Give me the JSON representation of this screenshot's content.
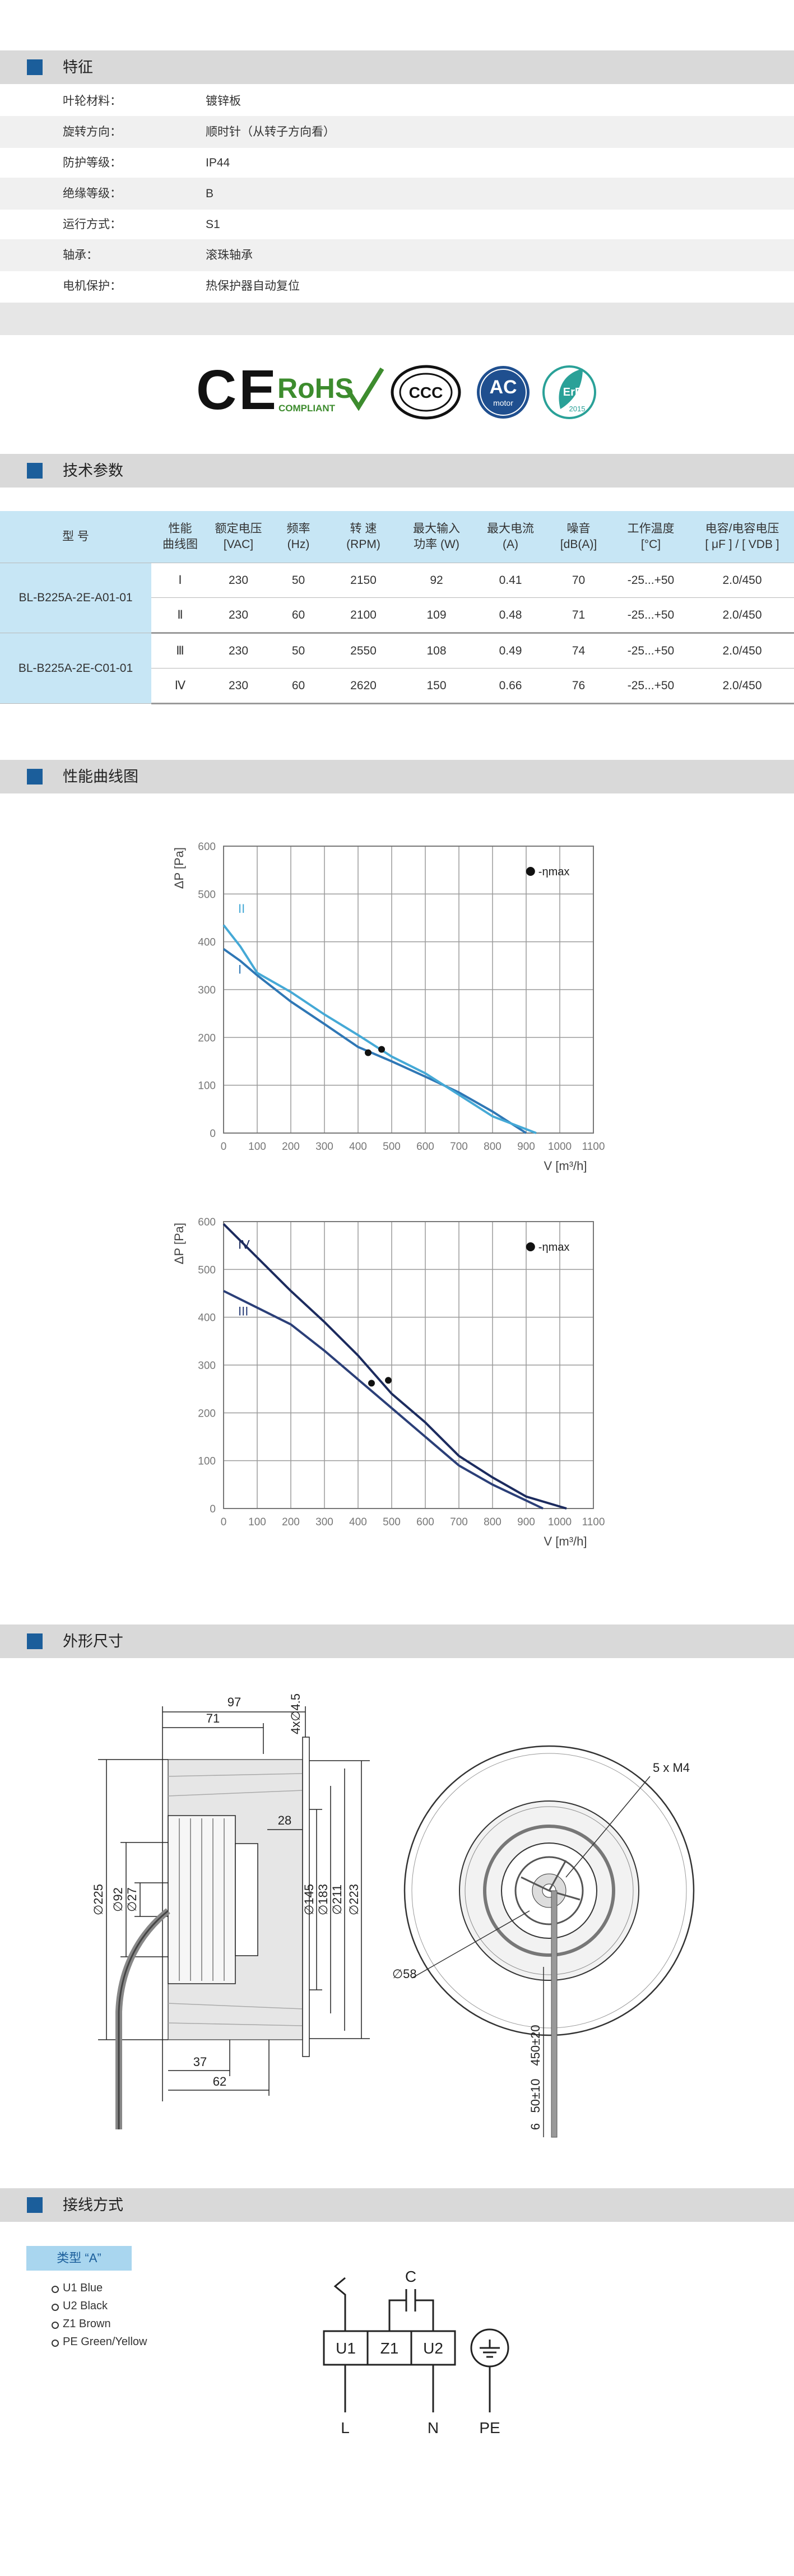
{
  "sections": {
    "features": "特征",
    "tech": "技术参数",
    "curves": "性能曲线图",
    "dimensions": "外形尺寸",
    "wiring": "接线方式"
  },
  "features": [
    [
      "叶轮材料：",
      "镀锌板"
    ],
    [
      "旋转方向：",
      "顺时针（从转子方向看）"
    ],
    [
      "防护等级：",
      "IP44"
    ],
    [
      "绝缘等级：",
      "B"
    ],
    [
      "运行方式：",
      "S1"
    ],
    [
      "轴承：",
      "滚珠轴承"
    ],
    [
      "电机保护：",
      "热保护器自动复位"
    ]
  ],
  "certifications": {
    "ce": "CE",
    "rohs": "RoHS",
    "rohs_sub": "COMPLIANT",
    "ccc": "CCC",
    "ac": "AC",
    "ac_sub": "motor",
    "erp": "ErP",
    "erp_year": "2015"
  },
  "tech_table": {
    "headers": [
      [
        "型 号"
      ],
      [
        "性能",
        "曲线图"
      ],
      [
        "额定电压",
        "[VAC]"
      ],
      [
        "频率",
        "(Hz)"
      ],
      [
        "转 速",
        "(RPM)"
      ],
      [
        "最大输入",
        "功率 (W)"
      ],
      [
        "最大电流",
        "(A)"
      ],
      [
        "噪音",
        "[dB(A)]"
      ],
      [
        "工作温度",
        "[°C]"
      ],
      [
        "电容/电容电压",
        "[ μF ] / [ VDB ]"
      ]
    ],
    "models": [
      "BL-B225A-2E-A01-01",
      "BL-B225A-2E-C01-01"
    ],
    "rows": [
      [
        "Ⅰ",
        "230",
        "50",
        "2150",
        "92",
        "0.41",
        "70",
        "-25...+50",
        "2.0/450"
      ],
      [
        "Ⅱ",
        "230",
        "60",
        "2100",
        "109",
        "0.48",
        "71",
        "-25...+50",
        "2.0/450"
      ],
      [
        "Ⅲ",
        "230",
        "50",
        "2550",
        "108",
        "0.49",
        "74",
        "-25...+50",
        "2.0/450"
      ],
      [
        "Ⅳ",
        "230",
        "60",
        "2620",
        "150",
        "0.66",
        "76",
        "-25...+50",
        "2.0/450"
      ]
    ]
  },
  "chart_data": [
    {
      "type": "line",
      "y_label": "ΔP [Pa]",
      "x_label": "V [m³/h]",
      "xlim": [
        0,
        1100
      ],
      "ylim": [
        0,
        600
      ],
      "xticks": [
        0,
        100,
        200,
        300,
        400,
        500,
        600,
        700,
        800,
        900,
        1000,
        1100
      ],
      "yticks": [
        0,
        100,
        200,
        300,
        400,
        500,
        600
      ],
      "grid": true,
      "series": [
        {
          "name": "I",
          "color": "#2f77b5",
          "x": [
            0,
            50,
            100,
            200,
            300,
            400,
            500,
            600,
            700,
            800,
            900
          ],
          "values": [
            385,
            360,
            330,
            275,
            228,
            180,
            150,
            118,
            85,
            45,
            0
          ]
        },
        {
          "name": "II",
          "color": "#45a9d6",
          "x": [
            0,
            50,
            100,
            200,
            300,
            400,
            500,
            600,
            700,
            800,
            930
          ],
          "values": [
            435,
            390,
            335,
            295,
            248,
            205,
            160,
            125,
            80,
            35,
            0
          ]
        },
        {
          "name": "-ηmax",
          "type": "scatter",
          "color": "#111111",
          "x": [
            430,
            470
          ],
          "values": [
            168,
            175
          ]
        }
      ]
    },
    {
      "type": "line",
      "y_label": "ΔP [Pa]",
      "x_label": "V [m³/h]",
      "xlim": [
        0,
        1100
      ],
      "ylim": [
        0,
        600
      ],
      "xticks": [
        0,
        100,
        200,
        300,
        400,
        500,
        600,
        700,
        800,
        900,
        1000,
        1100
      ],
      "yticks": [
        0,
        100,
        200,
        300,
        400,
        500,
        600
      ],
      "grid": true,
      "series": [
        {
          "name": "IV",
          "color": "#1c2b5e",
          "x": [
            0,
            100,
            200,
            300,
            400,
            500,
            600,
            700,
            800,
            900,
            1020
          ],
          "values": [
            595,
            525,
            455,
            390,
            320,
            240,
            180,
            110,
            65,
            25,
            0
          ]
        },
        {
          "name": "III",
          "color": "#2b3f78",
          "x": [
            0,
            100,
            200,
            300,
            400,
            500,
            600,
            700,
            800,
            950
          ],
          "values": [
            455,
            420,
            385,
            330,
            270,
            210,
            150,
            90,
            50,
            0
          ]
        },
        {
          "name": "-ηmax",
          "type": "scatter",
          "color": "#111111",
          "x": [
            440,
            490
          ],
          "values": [
            262,
            268
          ]
        }
      ]
    }
  ],
  "dimensions": {
    "left": [
      "97",
      "71",
      "4x∅4.5",
      "28",
      "∅225",
      "∅92",
      "∅27",
      "∅145",
      "∅183",
      "∅211",
      "∅223",
      "37",
      "62"
    ],
    "right": [
      "5 x M4",
      "∅58",
      "450±20",
      "50±10",
      "6"
    ]
  },
  "wiring": {
    "type": "类型 “A”",
    "items": [
      "U1  Blue",
      "U2  Black",
      "Z1  Brown",
      "PE  Green/Yellow"
    ],
    "diagram": {
      "c": "C",
      "u1": "U1",
      "z1": "Z1",
      "u2": "U2",
      "l": "L",
      "n": "N",
      "pe": "PE"
    }
  }
}
